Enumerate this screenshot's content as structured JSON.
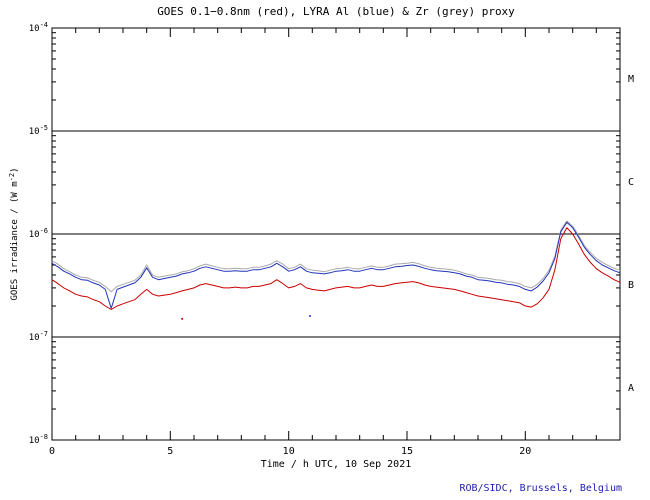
{
  "chart_data": {
    "type": "line",
    "title": "GOES 0.1−0.8nm (red), LYRA Al (blue) & Zr (grey) proxy",
    "xlabel": "Time / h UTC, 10 Sep 2021",
    "ylabel": "GOES irradiance / (W m-2)",
    "ylabel_parts": {
      "pre": "GOES irradiance / (W m",
      "sup": "-2",
      "post": ")"
    },
    "credit": "ROB/SIDC, Brussels, Belgium",
    "xlim": [
      0,
      24
    ],
    "x_major_ticks": [
      0,
      5,
      10,
      15,
      20
    ],
    "x_minor_step": 1,
    "ylog": true,
    "ylim": [
      1e-08,
      0.0001
    ],
    "y_decade_exponents": [
      -4,
      -5,
      -6,
      -7,
      -8
    ],
    "class_boundary_lines": [
      1e-05,
      1e-06,
      1e-07
    ],
    "flare_class_labels": [
      {
        "label": "M",
        "y": 3.2e-05
      },
      {
        "label": "C",
        "y": 3.2e-06
      },
      {
        "label": "B",
        "y": 3.2e-07
      },
      {
        "label": "A",
        "y": 3.2e-08
      }
    ],
    "x_start": 0,
    "x_step": 0.25,
    "y_scale": 1e-07,
    "series": [
      {
        "name": "LYRA Zr proxy (grey)",
        "color": "#aaaaaa",
        "y": [
          5.5,
          5.1,
          4.6,
          4.3,
          4.0,
          3.8,
          3.75,
          3.55,
          3.4,
          3.1,
          2.75,
          3.1,
          3.25,
          3.4,
          3.55,
          4.0,
          5.0,
          4.0,
          3.8,
          3.9,
          4.0,
          4.1,
          4.3,
          4.4,
          4.6,
          4.9,
          5.1,
          4.9,
          4.75,
          4.6,
          4.6,
          4.65,
          4.6,
          4.6,
          4.75,
          4.75,
          4.9,
          5.1,
          5.5,
          5.1,
          4.6,
          4.75,
          5.1,
          4.6,
          4.45,
          4.4,
          4.3,
          4.45,
          4.6,
          4.65,
          4.75,
          4.6,
          4.6,
          4.75,
          4.9,
          4.75,
          4.75,
          4.9,
          5.1,
          5.15,
          5.2,
          5.3,
          5.15,
          4.9,
          4.75,
          4.65,
          4.6,
          4.55,
          4.45,
          4.3,
          4.1,
          4.0,
          3.8,
          3.75,
          3.7,
          3.6,
          3.55,
          3.45,
          3.4,
          3.3,
          3.1,
          3.0,
          3.25,
          3.7,
          4.45,
          6.1,
          10.9,
          13.4,
          11.9,
          9.7,
          7.7,
          6.6,
          5.8,
          5.3,
          4.95,
          4.65,
          4.45
        ]
      },
      {
        "name": "LYRA Al proxy (blue)",
        "color": "#2233bb",
        "y": [
          5.2,
          4.8,
          4.35,
          4.1,
          3.8,
          3.6,
          3.55,
          3.35,
          3.2,
          2.9,
          1.9,
          2.9,
          3.05,
          3.2,
          3.35,
          3.8,
          4.7,
          3.8,
          3.6,
          3.7,
          3.8,
          3.9,
          4.1,
          4.2,
          4.35,
          4.65,
          4.8,
          4.65,
          4.5,
          4.35,
          4.35,
          4.4,
          4.35,
          4.35,
          4.5,
          4.5,
          4.65,
          4.8,
          5.2,
          4.8,
          4.35,
          4.5,
          4.8,
          4.35,
          4.2,
          4.15,
          4.1,
          4.2,
          4.35,
          4.4,
          4.5,
          4.35,
          4.35,
          4.5,
          4.65,
          4.5,
          4.5,
          4.65,
          4.8,
          4.85,
          4.95,
          5.0,
          4.85,
          4.65,
          4.5,
          4.4,
          4.35,
          4.3,
          4.2,
          4.1,
          3.9,
          3.8,
          3.6,
          3.55,
          3.5,
          3.4,
          3.35,
          3.25,
          3.2,
          3.1,
          2.9,
          2.8,
          3.05,
          3.5,
          4.2,
          5.8,
          10.5,
          13.0,
          11.5,
          9.3,
          7.4,
          6.3,
          5.5,
          5.0,
          4.7,
          4.4,
          4.2
        ]
      },
      {
        "name": "GOES 0.1−0.8nm (red)",
        "color": "#cc0000",
        "y": [
          3.6,
          3.3,
          3.0,
          2.8,
          2.6,
          2.5,
          2.45,
          2.3,
          2.2,
          2.0,
          1.85,
          2.0,
          2.1,
          2.2,
          2.3,
          2.6,
          2.9,
          2.6,
          2.5,
          2.55,
          2.6,
          2.7,
          2.8,
          2.9,
          3.0,
          3.2,
          3.3,
          3.2,
          3.1,
          3.0,
          3.0,
          3.05,
          3.0,
          3.0,
          3.1,
          3.1,
          3.2,
          3.3,
          3.6,
          3.3,
          3.0,
          3.1,
          3.3,
          3.0,
          2.9,
          2.85,
          2.8,
          2.9,
          3.0,
          3.05,
          3.1,
          3.0,
          3.0,
          3.1,
          3.2,
          3.1,
          3.1,
          3.2,
          3.3,
          3.35,
          3.4,
          3.45,
          3.35,
          3.2,
          3.1,
          3.05,
          3.0,
          2.95,
          2.9,
          2.8,
          2.7,
          2.6,
          2.5,
          2.45,
          2.4,
          2.35,
          2.3,
          2.25,
          2.2,
          2.15,
          2.0,
          1.95,
          2.1,
          2.4,
          2.9,
          4.5,
          9.0,
          11.5,
          10.0,
          8.0,
          6.3,
          5.3,
          4.6,
          4.2,
          3.9,
          3.6,
          3.4
        ]
      }
    ],
    "stray_points": [
      {
        "t": 5.5,
        "y": 1.5e-07,
        "color": "#cc0000"
      },
      {
        "t": 10.9,
        "y": 1.6e-07,
        "color": "#2233bb"
      }
    ],
    "colors": {
      "frame": "#000000",
      "title": "#000000",
      "credit": "#2222aa",
      "red_series": "#cc0000",
      "blue_series": "#2233bb",
      "grey_series": "#aaaaaa"
    }
  }
}
